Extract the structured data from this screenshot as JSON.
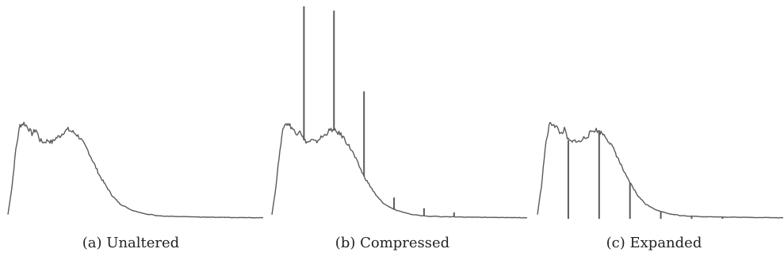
{
  "colors": {
    "line": "#5a5a5a",
    "background": "#ffffff",
    "caption": "#222222"
  },
  "chart_data": [
    {
      "type": "line",
      "caption": "(a) Unaltered",
      "grid": false,
      "axes_visible": false,
      "xlim": [
        0,
        255
      ],
      "ylim": [
        0,
        1.0
      ],
      "x": [
        0,
        4,
        8,
        12,
        16,
        20,
        24,
        28,
        32,
        36,
        40,
        44,
        48,
        52,
        56,
        60,
        64,
        68,
        72,
        76,
        80,
        84,
        88,
        92,
        96,
        100,
        104,
        108,
        112,
        116,
        120,
        124,
        128,
        132,
        136,
        140,
        144,
        148,
        152,
        156,
        160,
        164,
        168,
        172,
        176,
        180,
        184,
        188,
        192,
        196,
        200,
        204,
        208,
        212,
        216,
        220,
        224,
        228,
        232,
        236,
        240,
        244,
        248,
        252,
        255
      ],
      "values": [
        0.02,
        0.15,
        0.33,
        0.44,
        0.45,
        0.43,
        0.4,
        0.42,
        0.37,
        0.36,
        0.37,
        0.36,
        0.38,
        0.39,
        0.41,
        0.42,
        0.41,
        0.4,
        0.38,
        0.35,
        0.32,
        0.28,
        0.24,
        0.2,
        0.17,
        0.14,
        0.11,
        0.09,
        0.07,
        0.06,
        0.05,
        0.04,
        0.035,
        0.03,
        0.025,
        0.02,
        0.02,
        0.015,
        0.015,
        0.012,
        0.012,
        0.012,
        0.01,
        0.01,
        0.01,
        0.01,
        0.009,
        0.009,
        0.008,
        0.008,
        0.008,
        0.008,
        0.007,
        0.007,
        0.007,
        0.007,
        0.006,
        0.006,
        0.006,
        0.006,
        0.006,
        0.005,
        0.005,
        0.005,
        0.005
      ]
    },
    {
      "type": "line",
      "caption": "(b) Compressed",
      "grid": false,
      "axes_visible": false,
      "xlim": [
        0,
        255
      ],
      "ylim": [
        0,
        1.0
      ],
      "x": [
        0,
        4,
        8,
        12,
        16,
        20,
        24,
        28,
        32,
        36,
        40,
        44,
        48,
        52,
        56,
        60,
        64,
        68,
        72,
        76,
        80,
        84,
        88,
        92,
        96,
        100,
        104,
        108,
        112,
        116,
        120,
        124,
        128,
        132,
        136,
        140,
        144,
        148,
        152,
        156,
        160,
        164,
        168,
        172,
        176,
        180,
        184,
        188,
        192,
        196,
        200,
        204,
        208,
        212,
        216,
        220,
        224,
        228,
        232,
        236,
        240,
        244,
        248,
        252,
        255
      ],
      "values": [
        0.02,
        0.15,
        0.33,
        0.44,
        0.45,
        0.43,
        0.4,
        0.42,
        0.37,
        0.36,
        0.37,
        0.36,
        0.38,
        0.39,
        0.41,
        0.42,
        0.41,
        0.4,
        0.38,
        0.35,
        0.32,
        0.28,
        0.24,
        0.2,
        0.17,
        0.14,
        0.11,
        0.09,
        0.07,
        0.06,
        0.05,
        0.04,
        0.035,
        0.03,
        0.025,
        0.02,
        0.02,
        0.015,
        0.015,
        0.012,
        0.012,
        0.012,
        0.01,
        0.01,
        0.01,
        0.01,
        0.009,
        0.009,
        0.008,
        0.008,
        0.008,
        0.008,
        0.007,
        0.007,
        0.007,
        0.007,
        0.006,
        0.006,
        0.006,
        0.006,
        0.006,
        0.005,
        0.005,
        0.005,
        0.005
      ],
      "spikes": [
        {
          "x": 32,
          "value": 1.0
        },
        {
          "x": 62,
          "value": 0.98
        },
        {
          "x": 92,
          "value": 0.6
        },
        {
          "x": 122,
          "value": 0.1
        },
        {
          "x": 152,
          "value": 0.05
        },
        {
          "x": 182,
          "value": 0.03
        }
      ]
    },
    {
      "type": "line",
      "caption": "(c) Expanded",
      "grid": false,
      "axes_visible": false,
      "xlim": [
        0,
        255
      ],
      "ylim": [
        0,
        1.0
      ],
      "x": [
        0,
        4,
        8,
        12,
        16,
        20,
        24,
        28,
        32,
        36,
        40,
        44,
        48,
        52,
        56,
        60,
        64,
        68,
        72,
        76,
        80,
        84,
        88,
        92,
        96,
        100,
        104,
        108,
        112,
        116,
        120,
        124,
        128,
        132,
        136,
        140,
        144,
        148,
        152,
        156,
        160,
        164,
        168,
        172,
        176,
        180,
        184,
        188,
        192,
        196,
        200,
        204,
        208,
        212,
        216,
        220,
        224,
        228,
        232,
        236,
        240,
        244,
        248,
        252,
        255
      ],
      "values": [
        0.02,
        0.15,
        0.33,
        0.44,
        0.45,
        0.43,
        0.4,
        0.42,
        0.37,
        0.36,
        0.37,
        0.36,
        0.38,
        0.39,
        0.41,
        0.42,
        0.41,
        0.4,
        0.38,
        0.35,
        0.32,
        0.28,
        0.24,
        0.2,
        0.17,
        0.14,
        0.11,
        0.09,
        0.07,
        0.06,
        0.05,
        0.04,
        0.035,
        0.03,
        0.025,
        0.02,
        0.02,
        0.015,
        0.015,
        0.012,
        0.012,
        0.012,
        0.01,
        0.01,
        0.01,
        0.01,
        0.009,
        0.009,
        0.008,
        0.008,
        0.008,
        0.008,
        0.007,
        0.007,
        0.007,
        0.007,
        0.006,
        0.006,
        0.006,
        0.006,
        0.006,
        0.005,
        0.005,
        0.005,
        0.005
      ],
      "gaps": [
        {
          "x": 32
        },
        {
          "x": 64
        },
        {
          "x": 96
        },
        {
          "x": 128
        },
        {
          "x": 160
        },
        {
          "x": 192
        }
      ]
    }
  ]
}
